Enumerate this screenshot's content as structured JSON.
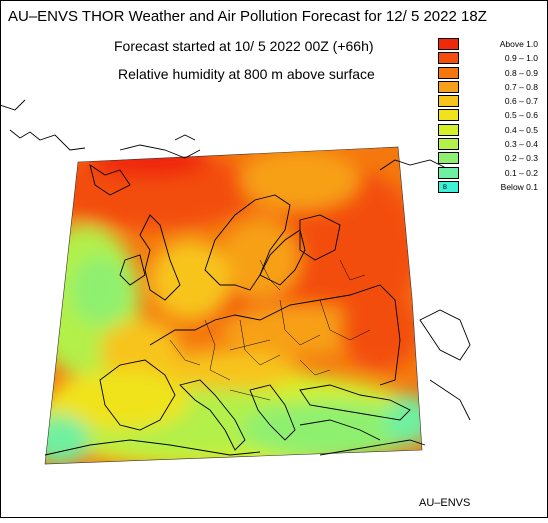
{
  "header": {
    "title": "AU–ENVS THOR Weather and Air Pollution Forecast for 12/ 5 2022  18Z",
    "forecast_started": "Forecast started at 10/ 5 2022  00Z (+66h)",
    "variable": "Relative humidity at 800 m above surface"
  },
  "legend": [
    {
      "label": "Above   1.0",
      "color": "#f0280a"
    },
    {
      "label": "0.9 – 1.0",
      "color": "#f34e0c"
    },
    {
      "label": "0.8 – 0.9",
      "color": "#f5780f"
    },
    {
      "label": "0.7 – 0.8",
      "color": "#f7a019"
    },
    {
      "label": "0.6 – 0.7",
      "color": "#f7c41c"
    },
    {
      "label": "0.5 – 0.6",
      "color": "#f0e31b"
    },
    {
      "label": "0.4 – 0.5",
      "color": "#d4f02a"
    },
    {
      "label": "0.3 – 0.4",
      "color": "#b3f04a"
    },
    {
      "label": "0.2 – 0.3",
      "color": "#8ff070"
    },
    {
      "label": "0.1 – 0.2",
      "color": "#6ff0a0"
    },
    {
      "label": "Below   0.1",
      "color": "#3ef0d6",
      "mark": "B"
    }
  ],
  "footer": {
    "credit": "AU–ENVS"
  }
}
